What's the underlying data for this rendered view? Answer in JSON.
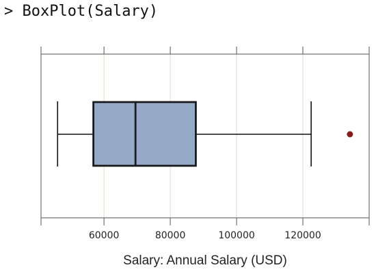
{
  "console": {
    "prompt": ">",
    "command": "BoxPlot(Salary)"
  },
  "chart_data": {
    "type": "boxplot",
    "xlabel": "Salary: Annual Salary (USD)",
    "xlim": [
      41000,
      140000
    ],
    "ticks": [
      60000,
      80000,
      100000,
      120000
    ],
    "tick_labels": [
      "60000",
      "80000",
      "100000",
      "120000"
    ],
    "grid": true,
    "box": {
      "whisker_low": 46000,
      "q1": 56800,
      "median": 69500,
      "q3": 87700,
      "whisker_high": 122500
    },
    "outliers": [
      134200
    ],
    "colors": {
      "box_fill": "#95aac6",
      "outlier": "#8b1a1a",
      "grid": "#dedfc7"
    }
  }
}
